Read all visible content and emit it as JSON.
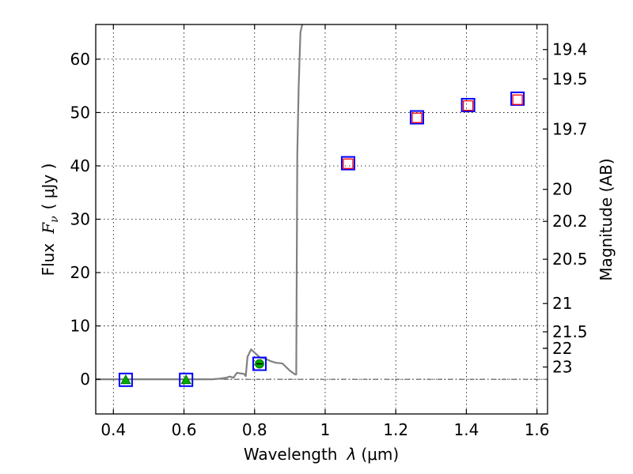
{
  "chart_data": {
    "type": "scatter",
    "xlabel": "Wavelength",
    "xlabel_symbol": "λ",
    "xlabel_unit": "(μm)",
    "ylabel": "Flux",
    "ylabel_symbol": "F",
    "ylabel_subscript": "ν",
    "ylabel_unit": "( μJy )",
    "y2label": "Magnitude (AB)",
    "xlim": [
      0.35,
      1.63
    ],
    "ylim": [
      -6.5,
      66.5
    ],
    "grid": true,
    "x_ticks": [
      0.4,
      0.6,
      0.8,
      1.0,
      1.2,
      1.4,
      1.6
    ],
    "x_tick_labels": [
      "0.4",
      "0.6",
      "0.8",
      "1",
      "1.2",
      "1.4",
      "1.6"
    ],
    "y_ticks": [
      0,
      10,
      20,
      30,
      40,
      50,
      60
    ],
    "y_tick_labels": [
      "0",
      "10",
      "20",
      "30",
      "40",
      "50",
      "60"
    ],
    "y2_ticks": [
      {
        "label": "19.4",
        "flux": 61.8
      },
      {
        "label": "19.5",
        "flux": 56.3
      },
      {
        "label": "19.7",
        "flux": 46.9
      },
      {
        "label": "20",
        "flux": 35.6
      },
      {
        "label": "20.2",
        "flux": 29.6
      },
      {
        "label": "20.5",
        "flux": 22.5
      },
      {
        "label": "21",
        "flux": 14.2
      },
      {
        "label": "21.5",
        "flux": 8.9
      },
      {
        "label": "22",
        "flux": 5.8
      },
      {
        "label": "22",
        "flux": 5.8
      },
      {
        "label": "23",
        "flux": 2.3
      }
    ],
    "series": [
      {
        "name": "model-spectrum",
        "kind": "line",
        "color": "#808080",
        "x": [
          0.35,
          0.68,
          0.7,
          0.72,
          0.73,
          0.74,
          0.75,
          0.77,
          0.775,
          0.78,
          0.79,
          0.8,
          0.815,
          0.83,
          0.845,
          0.86,
          0.875,
          0.88,
          0.9,
          0.915,
          0.918,
          0.921,
          0.925,
          0.93,
          0.935
        ],
        "y": [
          0,
          0,
          0.1,
          0.3,
          0.5,
          0.3,
          1.2,
          1.0,
          0.6,
          4.2,
          5.6,
          5.0,
          4.1,
          3.9,
          3.4,
          3.1,
          3.0,
          2.9,
          1.6,
          0.9,
          0.9,
          42,
          55,
          65,
          66.5
        ]
      },
      {
        "name": "observed-photometry",
        "kind": "marker",
        "marker": "open-square",
        "color": "#0000ff",
        "x": [
          0.435,
          0.606,
          0.814,
          1.065,
          1.26,
          1.405,
          1.545
        ],
        "y": [
          -0.1,
          -0.1,
          2.9,
          40.5,
          49.1,
          51.4,
          52.6
        ]
      },
      {
        "name": "model-photometry-ir",
        "kind": "marker",
        "marker": "open-square",
        "color": "#ff0000",
        "x": [
          1.065,
          1.26,
          1.405,
          1.545
        ],
        "y": [
          40.4,
          49.0,
          51.3,
          52.4
        ]
      },
      {
        "name": "upper-limits",
        "kind": "marker",
        "marker": "triangle",
        "color": "#00aa00",
        "x": [
          0.435,
          0.606
        ],
        "y": [
          -0.1,
          -0.1
        ]
      },
      {
        "name": "detection",
        "kind": "marker",
        "marker": "circle",
        "color": "#00aa00",
        "x": [
          0.814
        ],
        "y": [
          2.9
        ]
      },
      {
        "name": "zero-line",
        "kind": "hline",
        "color": "#000000",
        "y": 0
      }
    ]
  }
}
